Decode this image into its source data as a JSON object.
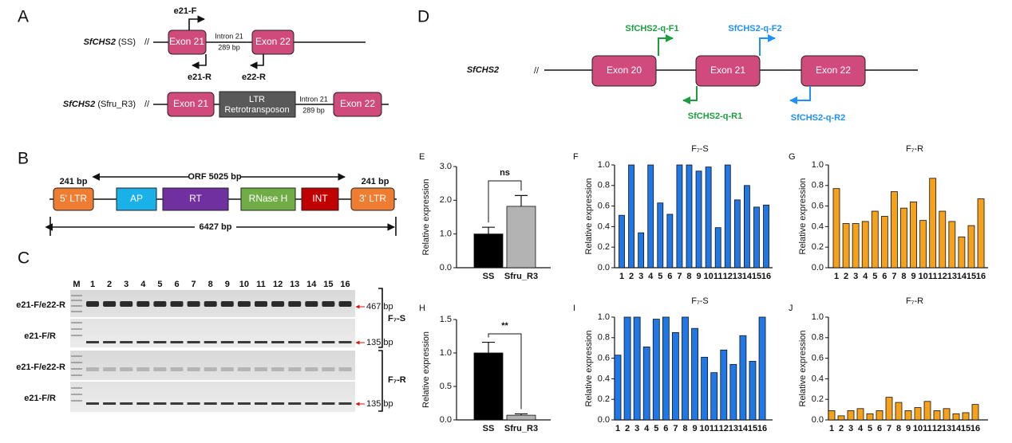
{
  "panel_a": {
    "letter": "A",
    "rows": [
      {
        "gene": "SfCHS2",
        "strain": "(SS)",
        "exon1": "Exon 21",
        "exon2": "Exon 22",
        "intron": "Intron 21",
        "intron_size": "289 bp",
        "primers": [
          "e21-F",
          "e21-R",
          "e22-R"
        ]
      },
      {
        "gene": "SfCHS2",
        "strain": "(Sfru_R3)",
        "exon1": "Exon 21",
        "insert": [
          "LTR",
          "Retrotransposon"
        ],
        "intron": "Intron 21",
        "intron_size": "289 bp",
        "exon2": "Exon 22"
      }
    ]
  },
  "panel_b": {
    "letter": "B",
    "ltr_size_left": "241 bp",
    "orf": "ORF 5025 bp",
    "ltr_size_right": "241 bp",
    "domains": [
      "5' LTR",
      "AP",
      "RT",
      "RNase H",
      "INT",
      "3' LTR"
    ],
    "total": "6427 bp"
  },
  "panel_c": {
    "letter": "C",
    "lanes": [
      "M",
      "1",
      "2",
      "3",
      "4",
      "5",
      "6",
      "7",
      "8",
      "9",
      "10",
      "11",
      "12",
      "13",
      "14",
      "15",
      "16"
    ],
    "rows": [
      "e21-F/e22-R",
      "e21-F/R",
      "e21-F/e22-R",
      "e21-F/R"
    ],
    "band_sizes": [
      "467 bp",
      "135 bp",
      "135 bp"
    ],
    "groups": [
      "F₇-S",
      "F₇-R"
    ]
  },
  "panel_d": {
    "letter": "D",
    "gene": "SfCHS2",
    "exons": [
      "Exon 20",
      "Exon 21",
      "Exon 22"
    ],
    "primers": [
      "SfCHS2-q-F1",
      "SfCHS2-q-F2",
      "SfCHS2-q-R1",
      "SfCHS2-q-R2"
    ]
  },
  "chart_data": [
    {
      "type": "bar",
      "panel": "E",
      "ylabel": "Relative expression",
      "categories": [
        "SS",
        "Sfru_R3"
      ],
      "values": [
        1.0,
        1.82
      ],
      "errors": [
        0.2,
        0.32
      ],
      "colors": [
        "#000000",
        "#b3b3b3"
      ],
      "ylim": [
        0,
        3
      ],
      "yticks": [
        {
          "value": 0,
          "label": "0.0"
        },
        {
          "value": 1,
          "label": "1.0"
        },
        {
          "value": 2,
          "label": "2.0"
        },
        {
          "value": 3,
          "label": "3.0"
        }
      ],
      "annotation": "ns"
    },
    {
      "type": "bar",
      "panel": "F",
      "title": "F₇-S",
      "ylabel": "Relative expression",
      "categories": [
        "1",
        "2",
        "3",
        "4",
        "5",
        "6",
        "7",
        "8",
        "9",
        "10",
        "11",
        "12",
        "13",
        "14",
        "15",
        "16"
      ],
      "values": [
        0.51,
        1.0,
        0.34,
        1.0,
        0.63,
        0.52,
        1.0,
        1.0,
        0.94,
        0.98,
        0.39,
        1.0,
        0.66,
        0.8,
        0.59,
        0.61
      ],
      "color": "#1f78e6",
      "ylim": [
        0,
        1
      ],
      "yticks": [
        {
          "value": 0,
          "label": "0.0"
        },
        0.2,
        0.4,
        0.6,
        0.8,
        {
          "value": 1,
          "label": "1.0"
        }
      ]
    },
    {
      "type": "bar",
      "panel": "G",
      "title": "F₇-R",
      "ylabel": "Relative expression",
      "categories": [
        "1",
        "2",
        "3",
        "4",
        "5",
        "6",
        "7",
        "8",
        "9",
        "10",
        "11",
        "12",
        "13",
        "14",
        "15",
        "16"
      ],
      "values": [
        0.77,
        0.43,
        0.43,
        0.45,
        0.55,
        0.5,
        0.74,
        0.58,
        0.64,
        0.46,
        0.87,
        0.55,
        0.45,
        0.3,
        0.41,
        0.67
      ],
      "color": "#f5a11c",
      "ylim": [
        0,
        1
      ],
      "yticks": [
        {
          "value": 0,
          "label": "0.0"
        },
        0.2,
        0.4,
        0.6,
        0.8,
        {
          "value": 1,
          "label": "1.0"
        }
      ]
    },
    {
      "type": "bar",
      "panel": "H",
      "ylabel": "Relative expression",
      "categories": [
        "SS",
        "Sfru_R3"
      ],
      "values": [
        1.0,
        0.07
      ],
      "errors": [
        0.16,
        0.02
      ],
      "colors": [
        "#000000",
        "#b3b3b3"
      ],
      "ylim": [
        0,
        1.5
      ],
      "yticks": [
        {
          "value": 0,
          "label": "0.0"
        },
        0.5,
        {
          "value": 1,
          "label": "1.0"
        },
        1.5
      ],
      "annotation": "**"
    },
    {
      "type": "bar",
      "panel": "I",
      "title": "F₇-S",
      "ylabel": "Relative expression",
      "categories": [
        "1",
        "2",
        "3",
        "4",
        "5",
        "6",
        "7",
        "8",
        "9",
        "10",
        "11",
        "12",
        "13",
        "14",
        "15",
        "16"
      ],
      "values": [
        0.63,
        1.0,
        1.0,
        0.71,
        0.98,
        1.0,
        0.85,
        1.0,
        0.89,
        0.61,
        0.46,
        0.68,
        0.54,
        0.82,
        0.57,
        1.0
      ],
      "color": "#1f78e6",
      "ylim": [
        0,
        1
      ],
      "yticks": [
        {
          "value": 0,
          "label": "0.0"
        },
        0.2,
        0.4,
        0.6,
        0.8,
        {
          "value": 1,
          "label": "1.0"
        }
      ]
    },
    {
      "type": "bar",
      "panel": "J",
      "title": "F₇-R",
      "ylabel": "Relative expression",
      "categories": [
        "1",
        "2",
        "3",
        "4",
        "5",
        "6",
        "7",
        "8",
        "9",
        "10",
        "11",
        "12",
        "13",
        "14",
        "15",
        "16"
      ],
      "values": [
        0.09,
        0.04,
        0.09,
        0.11,
        0.06,
        0.09,
        0.22,
        0.17,
        0.09,
        0.12,
        0.18,
        0.09,
        0.11,
        0.06,
        0.07,
        0.15
      ],
      "color": "#f5a11c",
      "ylim": [
        0,
        1
      ],
      "yticks": [
        {
          "value": 0,
          "label": "0.0"
        },
        0.2,
        0.4,
        0.6,
        0.8,
        {
          "value": 1,
          "label": "1.0"
        }
      ]
    }
  ]
}
